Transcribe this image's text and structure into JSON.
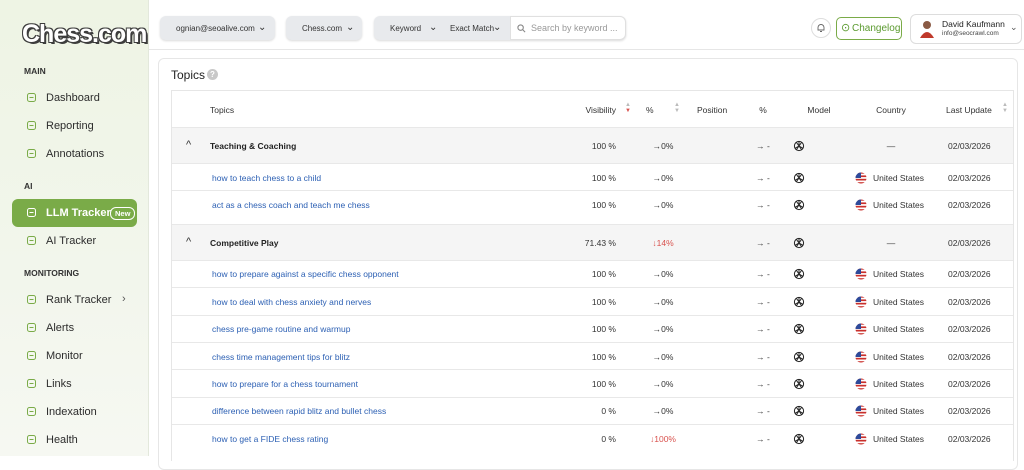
{
  "sidebar": {
    "logo": "Chess.com",
    "sections": [
      {
        "title": "MAIN",
        "items": [
          {
            "label": "Dashboard"
          },
          {
            "label": "Reporting"
          },
          {
            "label": "Annotations"
          }
        ]
      },
      {
        "title": "AI",
        "items": [
          {
            "label": "LLM Tracker",
            "badge": "New",
            "active": true
          },
          {
            "label": "AI Tracker"
          }
        ]
      },
      {
        "title": "MONITORING",
        "items": [
          {
            "label": "Rank Tracker",
            "submenu": true
          },
          {
            "label": "Alerts"
          },
          {
            "label": "Monitor"
          },
          {
            "label": "Links"
          },
          {
            "label": "Indexation"
          },
          {
            "label": "Health"
          }
        ]
      }
    ]
  },
  "topbar": {
    "account": "ognian@seoalive.com",
    "project": "Chess.com",
    "filter_field": "Keyword",
    "match_type": "Exact Match",
    "search_placeholder": "Search by keyword ...",
    "changelog": "Changelog",
    "user_name": "David Kaufmann",
    "user_email": "info@seocrawl.com"
  },
  "panel": {
    "title": "Topics",
    "table": {
      "columns": [
        "Topics",
        "Visibility",
        "%",
        "Position",
        "%",
        "Model",
        "Country",
        "Last Update"
      ],
      "rows": [
        {
          "kind": "group",
          "topic": "Teaching & Coaching",
          "visibility": "100 %",
          "change": "→0%",
          "position": "→ -",
          "country": "—",
          "last_update": "02/03/2026"
        },
        {
          "kind": "item",
          "topic": "how to teach chess to a child",
          "visibility": "100 %",
          "change": "→0%",
          "position": "→ -",
          "country": "United States",
          "last_update": "02/03/2026"
        },
        {
          "kind": "item",
          "topic": "act as a chess coach and teach me chess",
          "visibility": "100 %",
          "change": "→0%",
          "position": "→ -",
          "country": "United States",
          "last_update": "02/03/2026"
        },
        {
          "kind": "group",
          "topic": "Competitive Play",
          "visibility": "71.43 %",
          "change": "↓14%",
          "position": "→ -",
          "country": "—",
          "last_update": "02/03/2026"
        },
        {
          "kind": "item",
          "topic": "how to prepare against a specific chess opponent",
          "visibility": "100 %",
          "change": "→0%",
          "position": "→ -",
          "country": "United States",
          "last_update": "02/03/2026"
        },
        {
          "kind": "item",
          "topic": "how to deal with chess anxiety and nerves",
          "visibility": "100 %",
          "change": "→0%",
          "position": "→ -",
          "country": "United States",
          "last_update": "02/03/2026"
        },
        {
          "kind": "item",
          "topic": "chess pre-game routine and warmup",
          "visibility": "100 %",
          "change": "→0%",
          "position": "→ -",
          "country": "United States",
          "last_update": "02/03/2026"
        },
        {
          "kind": "item",
          "topic": "chess time management tips for blitz",
          "visibility": "100 %",
          "change": "→0%",
          "position": "→ -",
          "country": "United States",
          "last_update": "02/03/2026"
        },
        {
          "kind": "item",
          "topic": "how to prepare for a chess tournament",
          "visibility": "100 %",
          "change": "→0%",
          "position": "→ -",
          "country": "United States",
          "last_update": "02/03/2026"
        },
        {
          "kind": "item",
          "topic": "difference between rapid blitz and bullet chess",
          "visibility": "0 %",
          "change": "→0%",
          "position": "→ -",
          "country": "United States",
          "last_update": "02/03/2026"
        },
        {
          "kind": "item",
          "topic": "how to get a FIDE chess rating",
          "visibility": "0 %",
          "change": "↓100%",
          "position": "→ -",
          "country": "United States",
          "last_update": "02/03/2026"
        }
      ]
    }
  }
}
